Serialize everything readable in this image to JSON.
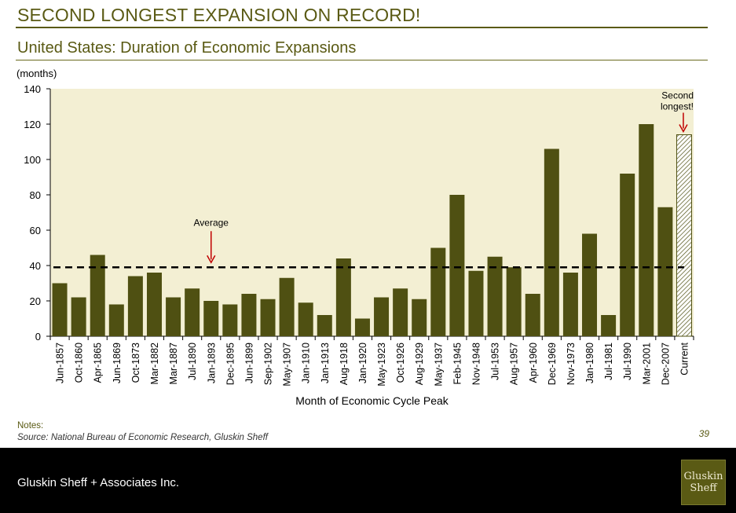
{
  "headline": "SECOND LONGEST EXPANSION ON RECORD!",
  "subtitle": "United States: Duration of Economic Expansions",
  "notes_label": "Notes:",
  "source": "Source: National Bureau of Economic Research, Gluskin Sheff",
  "page_number": "39",
  "footer": {
    "company": "Gluskin Sheff + Associates Inc.",
    "logo_line1": "Gluskin",
    "logo_line2": "Sheff"
  },
  "colors": {
    "bar": "#4f5012",
    "plot_bg": "#f3efd3",
    "accent": "#5a5a14",
    "arrow": "#c00000"
  },
  "chart_data": {
    "type": "bar",
    "ylabel": "(months)",
    "xlabel": "Month of Economic Cycle Peak",
    "ylim": [
      0,
      140
    ],
    "yticks": [
      0,
      20,
      40,
      60,
      80,
      100,
      120,
      140
    ],
    "categories": [
      "Jun-1857",
      "Oct-1860",
      "Apr-1865",
      "Jun-1869",
      "Oct-1873",
      "Mar-1882",
      "Mar-1887",
      "Jul-1890",
      "Jan-1893",
      "Dec-1895",
      "Jun-1899",
      "Sep-1902",
      "May-1907",
      "Jan-1910",
      "Jan-1913",
      "Aug-1918",
      "Jan-1920",
      "May-1923",
      "Oct-1926",
      "Aug-1929",
      "May-1937",
      "Feb-1945",
      "Nov-1948",
      "Jul-1953",
      "Aug-1957",
      "Apr-1960",
      "Dec-1969",
      "Nov-1973",
      "Jan-1980",
      "Jul-1981",
      "Jul-1990",
      "Mar-2001",
      "Dec-2007",
      "Current"
    ],
    "values": [
      30,
      22,
      46,
      18,
      34,
      36,
      22,
      27,
      20,
      18,
      24,
      21,
      33,
      19,
      12,
      44,
      10,
      22,
      27,
      21,
      50,
      80,
      37,
      45,
      39,
      24,
      106,
      36,
      58,
      12,
      92,
      120,
      73,
      114
    ],
    "hatched_categories": [
      "Current"
    ],
    "average": 39,
    "annotations": [
      {
        "text": "Average",
        "category": "Jan-1893",
        "value": 39
      },
      {
        "text_lines": [
          "Second",
          "longest!"
        ],
        "category": "Current",
        "value": 114
      }
    ]
  }
}
